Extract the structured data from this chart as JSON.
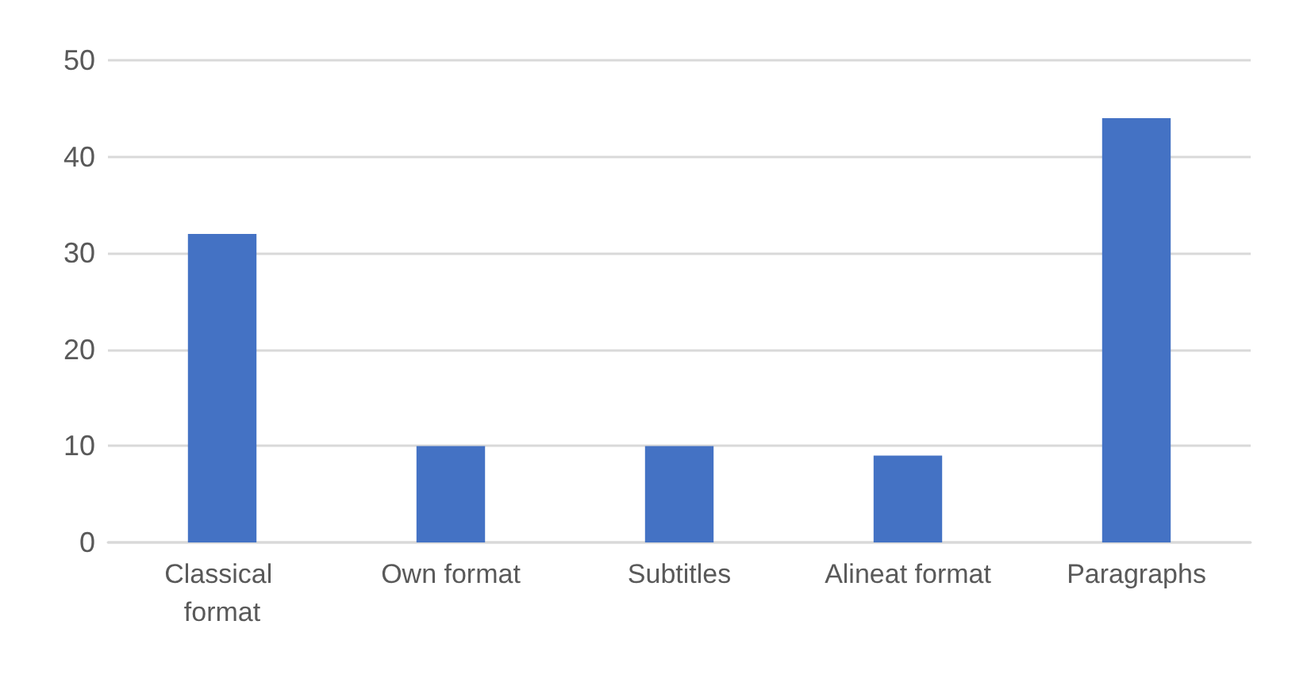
{
  "chart_data": {
    "type": "bar",
    "categories": [
      "Classical format",
      "Own format",
      "Subtitles",
      "Alineat format",
      "Paragraphs"
    ],
    "values": [
      32,
      10,
      10,
      9,
      44
    ],
    "color": "#4472c4",
    "ylim": [
      0,
      50
    ],
    "yticks": [
      0,
      10,
      20,
      30,
      40,
      50
    ],
    "grid": "y"
  }
}
